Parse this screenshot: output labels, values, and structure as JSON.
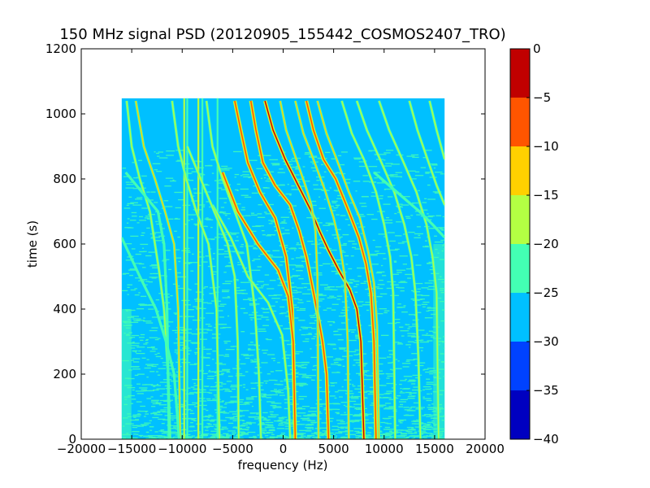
{
  "chart_data": {
    "type": "heatmap",
    "title": "150 MHz signal PSD (20120905_155442_COSMOS2407_TRO)",
    "xlabel": "frequency (Hz)",
    "ylabel": "time (s)",
    "xlim": [
      -20000,
      20000
    ],
    "ylim": [
      0,
      1200
    ],
    "xticks": [
      -20000,
      -15000,
      -10000,
      -5000,
      0,
      5000,
      10000,
      15000,
      20000
    ],
    "xtick_labels": [
      "−20000",
      "−15000",
      "−10000",
      "−5000",
      "0",
      "5000",
      "10000",
      "15000",
      "20000"
    ],
    "yticks": [
      0,
      200,
      400,
      600,
      800,
      1000,
      1200
    ],
    "ytick_labels": [
      "0",
      "200",
      "400",
      "600",
      "800",
      "1000",
      "1200"
    ],
    "data_extent": {
      "x": [
        -16000,
        16000
      ],
      "y": [
        0,
        1048
      ]
    },
    "background_level": -27.5,
    "noise_level": -22.5,
    "vertical_lines": [
      {
        "x": -9800,
        "level": -17.5
      },
      {
        "x": -9500,
        "level": -22.5
      },
      {
        "x": -8400,
        "level": -17.5
      },
      {
        "x": -8000,
        "level": -22.5
      },
      {
        "x": -6500,
        "level": -22.5
      }
    ],
    "traces": [
      {
        "points": [
          [
            -15500,
            1040
          ],
          [
            -15000,
            900
          ],
          [
            -14200,
            800
          ],
          [
            -13200,
            700
          ],
          [
            -12300,
            520
          ],
          [
            -11800,
            400
          ],
          [
            -11400,
            200
          ],
          [
            -11200,
            0
          ]
        ],
        "level": -17.5
      },
      {
        "points": [
          [
            -15600,
            820
          ],
          [
            -14000,
            760
          ],
          [
            -12400,
            700
          ],
          [
            -11800,
            600
          ],
          [
            -11500,
            400
          ],
          [
            -11300,
            0
          ]
        ],
        "level": -22.5
      },
      {
        "points": [
          [
            -14600,
            1040
          ],
          [
            -13800,
            900
          ],
          [
            -12700,
            800
          ],
          [
            -11700,
            700
          ],
          [
            -10800,
            600
          ],
          [
            -10400,
            400
          ],
          [
            -10200,
            0
          ]
        ],
        "level": -12.5
      },
      {
        "points": [
          [
            -16000,
            620
          ],
          [
            -14200,
            500
          ],
          [
            -12600,
            400
          ],
          [
            -11600,
            300
          ],
          [
            -10800,
            200
          ],
          [
            -10300,
            0
          ]
        ],
        "level": -22.5
      },
      {
        "points": [
          [
            -11000,
            1040
          ],
          [
            -10400,
            900
          ],
          [
            -9600,
            800
          ],
          [
            -8600,
            700
          ],
          [
            -7400,
            600
          ],
          [
            -6600,
            400
          ],
          [
            -6300,
            0
          ]
        ],
        "level": -17.5
      },
      {
        "points": [
          [
            -7600,
            1040
          ],
          [
            -7000,
            900
          ],
          [
            -6000,
            800
          ],
          [
            -4800,
            700
          ],
          [
            -3600,
            600
          ],
          [
            -2800,
            400
          ],
          [
            -2400,
            200
          ],
          [
            -2200,
            0
          ]
        ],
        "level": -17.5
      },
      {
        "points": [
          [
            -4800,
            1040
          ],
          [
            -4200,
            950
          ],
          [
            -3500,
            850
          ],
          [
            -2300,
            760
          ],
          [
            -800,
            680
          ],
          [
            300,
            560
          ],
          [
            900,
            400
          ],
          [
            1200,
            0
          ]
        ],
        "level": -7.5
      },
      {
        "points": [
          [
            -3200,
            1040
          ],
          [
            -2700,
            950
          ],
          [
            -2000,
            850
          ],
          [
            -800,
            780
          ],
          [
            700,
            720
          ],
          [
            1600,
            640
          ],
          [
            2300,
            560
          ],
          [
            3200,
            420
          ],
          [
            3900,
            300
          ],
          [
            4300,
            200
          ],
          [
            4500,
            0
          ]
        ],
        "level": -7.5
      },
      {
        "points": [
          [
            -1800,
            1040
          ],
          [
            -1000,
            950
          ],
          [
            200,
            860
          ],
          [
            1500,
            780
          ],
          [
            2800,
            700
          ],
          [
            3600,
            640
          ],
          [
            4500,
            580
          ],
          [
            5500,
            520
          ],
          [
            6600,
            460
          ],
          [
            7300,
            400
          ],
          [
            7700,
            300
          ],
          [
            8000,
            0
          ]
        ],
        "level": -2.5
      },
      {
        "points": [
          [
            -6000,
            820
          ],
          [
            -4500,
            700
          ],
          [
            -2500,
            600
          ],
          [
            -500,
            520
          ],
          [
            500,
            440
          ],
          [
            1000,
            300
          ],
          [
            1200,
            0
          ]
        ],
        "level": -7.5
      },
      {
        "points": [
          [
            -7000,
            720
          ],
          [
            -5200,
            620
          ],
          [
            -3500,
            500
          ],
          [
            -1500,
            420
          ],
          [
            -100,
            320
          ],
          [
            500,
            150
          ],
          [
            700,
            0
          ]
        ],
        "level": -17.5
      },
      {
        "points": [
          [
            -9500,
            900
          ],
          [
            -7500,
            750
          ],
          [
            -5500,
            600
          ],
          [
            -4800,
            500
          ],
          [
            -4500,
            300
          ],
          [
            -4400,
            0
          ]
        ],
        "level": -17.5
      },
      {
        "points": [
          [
            -300,
            1040
          ],
          [
            300,
            950
          ],
          [
            1300,
            860
          ],
          [
            2200,
            780
          ],
          [
            2800,
            720
          ],
          [
            3200,
            640
          ],
          [
            3400,
            500
          ],
          [
            3500,
            0
          ]
        ],
        "level": -12.5
      },
      {
        "points": [
          [
            1200,
            1040
          ],
          [
            2000,
            940
          ],
          [
            3000,
            860
          ],
          [
            4200,
            760
          ],
          [
            5000,
            680
          ],
          [
            5600,
            600
          ],
          [
            6100,
            500
          ],
          [
            6400,
            300
          ],
          [
            6500,
            0
          ]
        ],
        "level": -12.5
      },
      {
        "points": [
          [
            2300,
            1040
          ],
          [
            3000,
            950
          ],
          [
            4000,
            860
          ],
          [
            5200,
            800
          ],
          [
            6500,
            700
          ],
          [
            7500,
            620
          ],
          [
            8200,
            540
          ],
          [
            8700,
            450
          ],
          [
            9000,
            300
          ],
          [
            9200,
            0
          ]
        ],
        "level": -7.5
      },
      {
        "points": [
          [
            3400,
            1040
          ],
          [
            4300,
            940
          ],
          [
            5300,
            860
          ],
          [
            6500,
            760
          ],
          [
            7600,
            680
          ],
          [
            8400,
            580
          ],
          [
            9000,
            480
          ],
          [
            9300,
            350
          ],
          [
            9500,
            0
          ]
        ],
        "level": -12.5
      },
      {
        "points": [
          [
            5800,
            1040
          ],
          [
            6800,
            940
          ],
          [
            8000,
            860
          ],
          [
            9200,
            760
          ],
          [
            10000,
            660
          ],
          [
            10600,
            560
          ],
          [
            10900,
            450
          ],
          [
            11100,
            0
          ]
        ],
        "level": -17.5
      },
      {
        "points": [
          [
            7300,
            1040
          ],
          [
            8300,
            950
          ],
          [
            9600,
            860
          ],
          [
            11000,
            760
          ],
          [
            12000,
            660
          ],
          [
            12700,
            560
          ],
          [
            13100,
            450
          ],
          [
            13400,
            250
          ],
          [
            13600,
            0
          ]
        ],
        "level": -17.5
      },
      {
        "points": [
          [
            9500,
            1040
          ],
          [
            10500,
            950
          ],
          [
            11800,
            860
          ],
          [
            13200,
            760
          ],
          [
            14200,
            660
          ],
          [
            14800,
            560
          ],
          [
            15200,
            450
          ],
          [
            15400,
            0
          ]
        ],
        "level": -17.5
      },
      {
        "points": [
          [
            12500,
            1040
          ],
          [
            13300,
            950
          ],
          [
            14300,
            860
          ],
          [
            15200,
            780
          ],
          [
            16000,
            720
          ]
        ],
        "level": -17.5
      },
      {
        "points": [
          [
            14500,
            1040
          ],
          [
            15200,
            950
          ],
          [
            16000,
            860
          ]
        ],
        "level": -17.5
      },
      {
        "points": [
          [
            9000,
            820
          ],
          [
            10500,
            780
          ],
          [
            12000,
            740
          ],
          [
            13500,
            700
          ],
          [
            14800,
            660
          ],
          [
            16000,
            620
          ]
        ],
        "level": -22.5
      }
    ],
    "colorbar": {
      "vmin": -40,
      "vmax": 0,
      "ticks": [
        0,
        -5,
        -10,
        -15,
        -20,
        -25,
        -30,
        -35,
        -40
      ],
      "tick_labels": [
        "0",
        "−5",
        "−10",
        "−15",
        "−20",
        "−25",
        "−30",
        "−35",
        "−40"
      ],
      "bands": [
        {
          "from": -40,
          "to": -35,
          "color": "#0000c0"
        },
        {
          "from": -35,
          "to": -30,
          "color": "#0042ff"
        },
        {
          "from": -30,
          "to": -25,
          "color": "#00c0ff"
        },
        {
          "from": -25,
          "to": -20,
          "color": "#43ffb4"
        },
        {
          "from": -20,
          "to": -15,
          "color": "#b4ff43"
        },
        {
          "from": -15,
          "to": -10,
          "color": "#ffd000"
        },
        {
          "from": -10,
          "to": -5,
          "color": "#ff5500"
        },
        {
          "from": -5,
          "to": 0,
          "color": "#c00000"
        }
      ]
    },
    "grid": false,
    "legend": "none"
  }
}
